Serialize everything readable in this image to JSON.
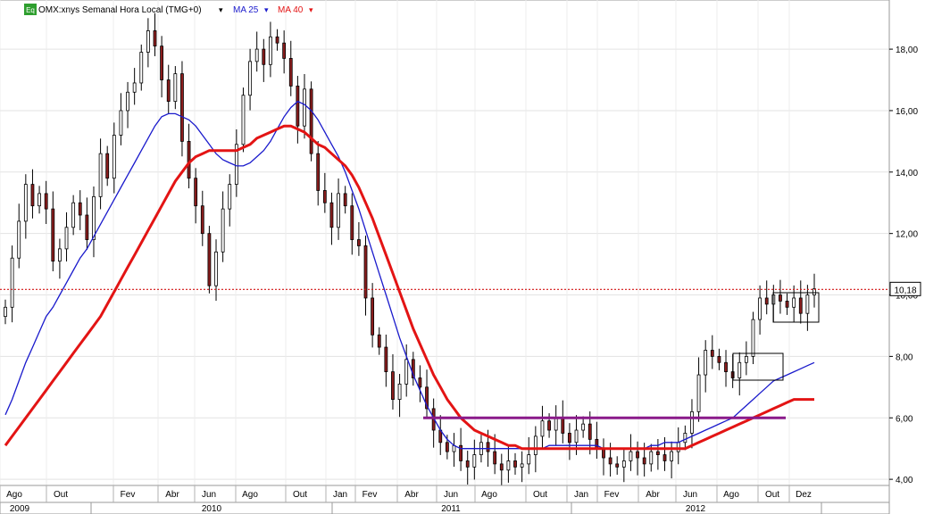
{
  "chart_data": {
    "type": "candlestick",
    "title": "OMX:xnys Semanal Hora Local (TMG+0)",
    "instrument_badge": "Eq",
    "series": [
      {
        "name": "MA 25",
        "color": "#1a1acc"
      },
      {
        "name": "MA 40",
        "color": "#e31414"
      }
    ],
    "ylim": [
      3.8,
      19.6
    ],
    "yticks": [
      "4,00",
      "6,00",
      "8,00",
      "10,00",
      "12,00",
      "14,00",
      "16,00",
      "18,00"
    ],
    "ytick_values": [
      4,
      6,
      8,
      10,
      12,
      14,
      16,
      18
    ],
    "last_price": {
      "label": "10,18",
      "value": 10.18
    },
    "support_level": 6.0,
    "month_labels": [
      "Ago",
      "Out",
      "Fev",
      "Abr",
      "Jun",
      "Ago",
      "Out",
      "Jan",
      "Fev",
      "Abr",
      "Jun",
      "Ago",
      "Out",
      "Jan",
      "Fev",
      "Abr",
      "Jun",
      "Ago",
      "Out",
      "Dez"
    ],
    "year_labels": [
      "2009",
      "2010",
      "2011",
      "2012"
    ],
    "closes": [
      9.6,
      11.2,
      12.4,
      13.6,
      12.9,
      13.3,
      12.8,
      11.1,
      11.5,
      12.2,
      13.0,
      12.6,
      11.8,
      13.2,
      14.6,
      13.8,
      15.2,
      16.0,
      16.6,
      16.9,
      17.9,
      18.6,
      18.1,
      17.0,
      16.3,
      17.2,
      15.0,
      13.8,
      12.9,
      12.0,
      10.3,
      11.4,
      12.8,
      13.6,
      14.9,
      16.5,
      17.6,
      18.0,
      17.5,
      18.4,
      18.2,
      17.7,
      16.8,
      15.5,
      16.7,
      14.6,
      13.4,
      13.0,
      12.2,
      13.3,
      12.9,
      11.8,
      11.6,
      9.9,
      8.7,
      8.3,
      7.5,
      6.6,
      7.1,
      7.9,
      7.3,
      7.0,
      6.3,
      5.6,
      5.2,
      4.9,
      5.1,
      4.6,
      4.4,
      4.8,
      5.2,
      4.9,
      4.5,
      4.3,
      4.6,
      4.4,
      4.5,
      4.8,
      5.4,
      5.9,
      5.6,
      6.0,
      5.5,
      5.2,
      5.6,
      5.8,
      5.3,
      5.0,
      4.7,
      4.5,
      4.4,
      4.6,
      4.9,
      4.7,
      4.5,
      4.9,
      4.8,
      4.6,
      4.9,
      5.2,
      5.5,
      6.2,
      7.4,
      8.2,
      8.0,
      7.8,
      7.5,
      7.3,
      7.8,
      8.0,
      9.2,
      9.9,
      9.7,
      10.0,
      9.8,
      9.6,
      9.9,
      9.4,
      10.0,
      10.2
    ],
    "ma25": [
      6.1,
      6.6,
      7.2,
      7.8,
      8.3,
      8.8,
      9.3,
      9.6,
      10.0,
      10.4,
      10.8,
      11.2,
      11.5,
      11.9,
      12.3,
      12.7,
      13.1,
      13.5,
      13.9,
      14.3,
      14.7,
      15.1,
      15.5,
      15.8,
      15.9,
      15.9,
      15.8,
      15.7,
      15.5,
      15.2,
      14.9,
      14.6,
      14.4,
      14.3,
      14.2,
      14.2,
      14.3,
      14.5,
      14.7,
      15.0,
      15.4,
      15.8,
      16.1,
      16.3,
      16.2,
      16.0,
      15.7,
      15.3,
      14.9,
      14.5,
      14.0,
      13.4,
      12.8,
      12.1,
      11.4,
      10.7,
      10.0,
      9.3,
      8.6,
      8.0,
      7.4,
      6.9,
      6.4,
      6.0,
      5.6,
      5.3,
      5.1,
      5.0,
      5.0,
      5.0,
      5.0,
      5.0,
      5.0,
      5.0,
      5.0,
      5.0,
      5.0,
      5.0,
      5.0,
      5.0,
      5.1,
      5.1,
      5.1,
      5.1,
      5.1,
      5.1,
      5.1,
      5.1,
      5.0,
      5.0,
      5.0,
      5.0,
      5.0,
      5.0,
      5.0,
      5.1,
      5.1,
      5.2,
      5.2,
      5.2,
      5.3,
      5.4,
      5.5,
      5.6,
      5.7,
      5.8,
      5.9,
      6.0,
      6.2,
      6.4,
      6.6,
      6.8,
      7.0,
      7.2,
      7.3,
      7.4,
      7.5,
      7.6,
      7.7,
      7.8
    ],
    "ma40": [
      5.1,
      5.4,
      5.7,
      6.0,
      6.3,
      6.6,
      6.9,
      7.2,
      7.5,
      7.8,
      8.1,
      8.4,
      8.7,
      9.0,
      9.3,
      9.7,
      10.1,
      10.5,
      10.9,
      11.3,
      11.7,
      12.1,
      12.5,
      12.9,
      13.3,
      13.7,
      14.0,
      14.3,
      14.5,
      14.6,
      14.7,
      14.7,
      14.7,
      14.7,
      14.7,
      14.8,
      14.9,
      15.1,
      15.2,
      15.3,
      15.4,
      15.5,
      15.5,
      15.4,
      15.3,
      15.1,
      14.9,
      14.8,
      14.6,
      14.4,
      14.2,
      13.9,
      13.5,
      13.0,
      12.5,
      11.9,
      11.3,
      10.7,
      10.1,
      9.5,
      8.9,
      8.4,
      7.9,
      7.4,
      7.0,
      6.6,
      6.3,
      6.0,
      5.8,
      5.6,
      5.5,
      5.4,
      5.3,
      5.2,
      5.1,
      5.1,
      5.0,
      5.0,
      5.0,
      5.0,
      5.0,
      5.0,
      5.0,
      5.0,
      5.0,
      5.0,
      5.0,
      5.0,
      5.0,
      5.0,
      5.0,
      5.0,
      5.0,
      5.0,
      5.0,
      5.0,
      5.0,
      5.0,
      5.0,
      5.0,
      5.0,
      5.1,
      5.2,
      5.3,
      5.4,
      5.5,
      5.6,
      5.7,
      5.8,
      5.9,
      6.0,
      6.1,
      6.2,
      6.3,
      6.4,
      6.5,
      6.6,
      6.6,
      6.6,
      6.6
    ]
  }
}
